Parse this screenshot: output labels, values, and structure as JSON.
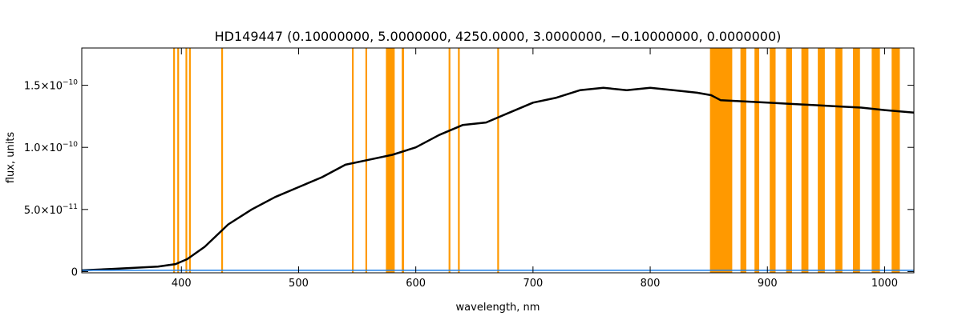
{
  "chart_data": {
    "type": "line",
    "title": "HD149447    (0.10000000, 5.0000000, 4250.0000, 3.0000000, −0.10000000, 0.0000000)",
    "xlabel": "wavelength, nm",
    "ylabel": "flux, units",
    "xlim": [
      315,
      1025
    ],
    "ylim": [
      -1e-12,
      1.8e-10
    ],
    "x_ticks": [
      400,
      500,
      600,
      700,
      800,
      900,
      1000
    ],
    "y_ticks": [
      {
        "value": 0,
        "mantissa": "0",
        "exponent": ""
      },
      {
        "value": 5e-11,
        "mantissa": "5.0×10",
        "exponent": "−11"
      },
      {
        "value": 1e-10,
        "mantissa": "1.0×10",
        "exponent": "−10"
      },
      {
        "value": 1.5e-10,
        "mantissa": "1.5×10",
        "exponent": "−10"
      }
    ],
    "series": [
      {
        "color": "#000000",
        "x": [
          315,
          340,
          360,
          380,
          395,
          405,
          420,
          440,
          460,
          480,
          500,
          520,
          540,
          560,
          580,
          600,
          620,
          640,
          660,
          680,
          700,
          720,
          740,
          760,
          780,
          800,
          820,
          840,
          852,
          860,
          880,
          900,
          920,
          940,
          960,
          980,
          1000,
          1025
        ],
        "y": [
          1e-12,
          2e-12,
          3e-12,
          4e-12,
          6e-12,
          1e-11,
          2e-11,
          3.8e-11,
          5e-11,
          6e-11,
          6.8e-11,
          7.6e-11,
          8.6e-11,
          9e-11,
          9.4e-11,
          1e-10,
          1.1e-10,
          1.18e-10,
          1.2e-10,
          1.28e-10,
          1.36e-10,
          1.4e-10,
          1.46e-10,
          1.48e-10,
          1.46e-10,
          1.48e-10,
          1.46e-10,
          1.44e-10,
          1.42e-10,
          1.38e-10,
          1.37e-10,
          1.36e-10,
          1.35e-10,
          1.34e-10,
          1.33e-10,
          1.32e-10,
          1.3e-10,
          1.28e-10
        ]
      },
      {
        "color": "#1f7fe6",
        "x": [
          315,
          400,
          500,
          600,
          700,
          800,
          900,
          1000,
          1025
        ],
        "y": [
          1e-12,
          1e-12,
          1e-12,
          1e-12,
          1e-12,
          1e-12,
          1e-12,
          1e-12,
          1e-12
        ]
      }
    ],
    "bands": [
      {
        "from": 393,
        "to": 394.5
      },
      {
        "from": 396.5,
        "to": 398
      },
      {
        "from": 403.5,
        "to": 405
      },
      {
        "from": 406.5,
        "to": 408
      },
      {
        "from": 434,
        "to": 435.5
      },
      {
        "from": 545.5,
        "to": 547
      },
      {
        "from": 557,
        "to": 558.5
      },
      {
        "from": 574.5,
        "to": 582
      },
      {
        "from": 588,
        "to": 590
      },
      {
        "from": 628,
        "to": 629.5
      },
      {
        "from": 636,
        "to": 637.5
      },
      {
        "from": 669.5,
        "to": 671
      },
      {
        "from": 851,
        "to": 870
      },
      {
        "from": 877,
        "to": 882
      },
      {
        "from": 889,
        "to": 893
      },
      {
        "from": 902,
        "to": 907
      },
      {
        "from": 916,
        "to": 921
      },
      {
        "from": 929,
        "to": 935
      },
      {
        "from": 943,
        "to": 949
      },
      {
        "from": 958,
        "to": 964
      },
      {
        "from": 973,
        "to": 979
      },
      {
        "from": 989,
        "to": 996
      },
      {
        "from": 1006,
        "to": 1013
      }
    ],
    "band_color": "#ff9900",
    "grid": false,
    "legend": "none"
  }
}
